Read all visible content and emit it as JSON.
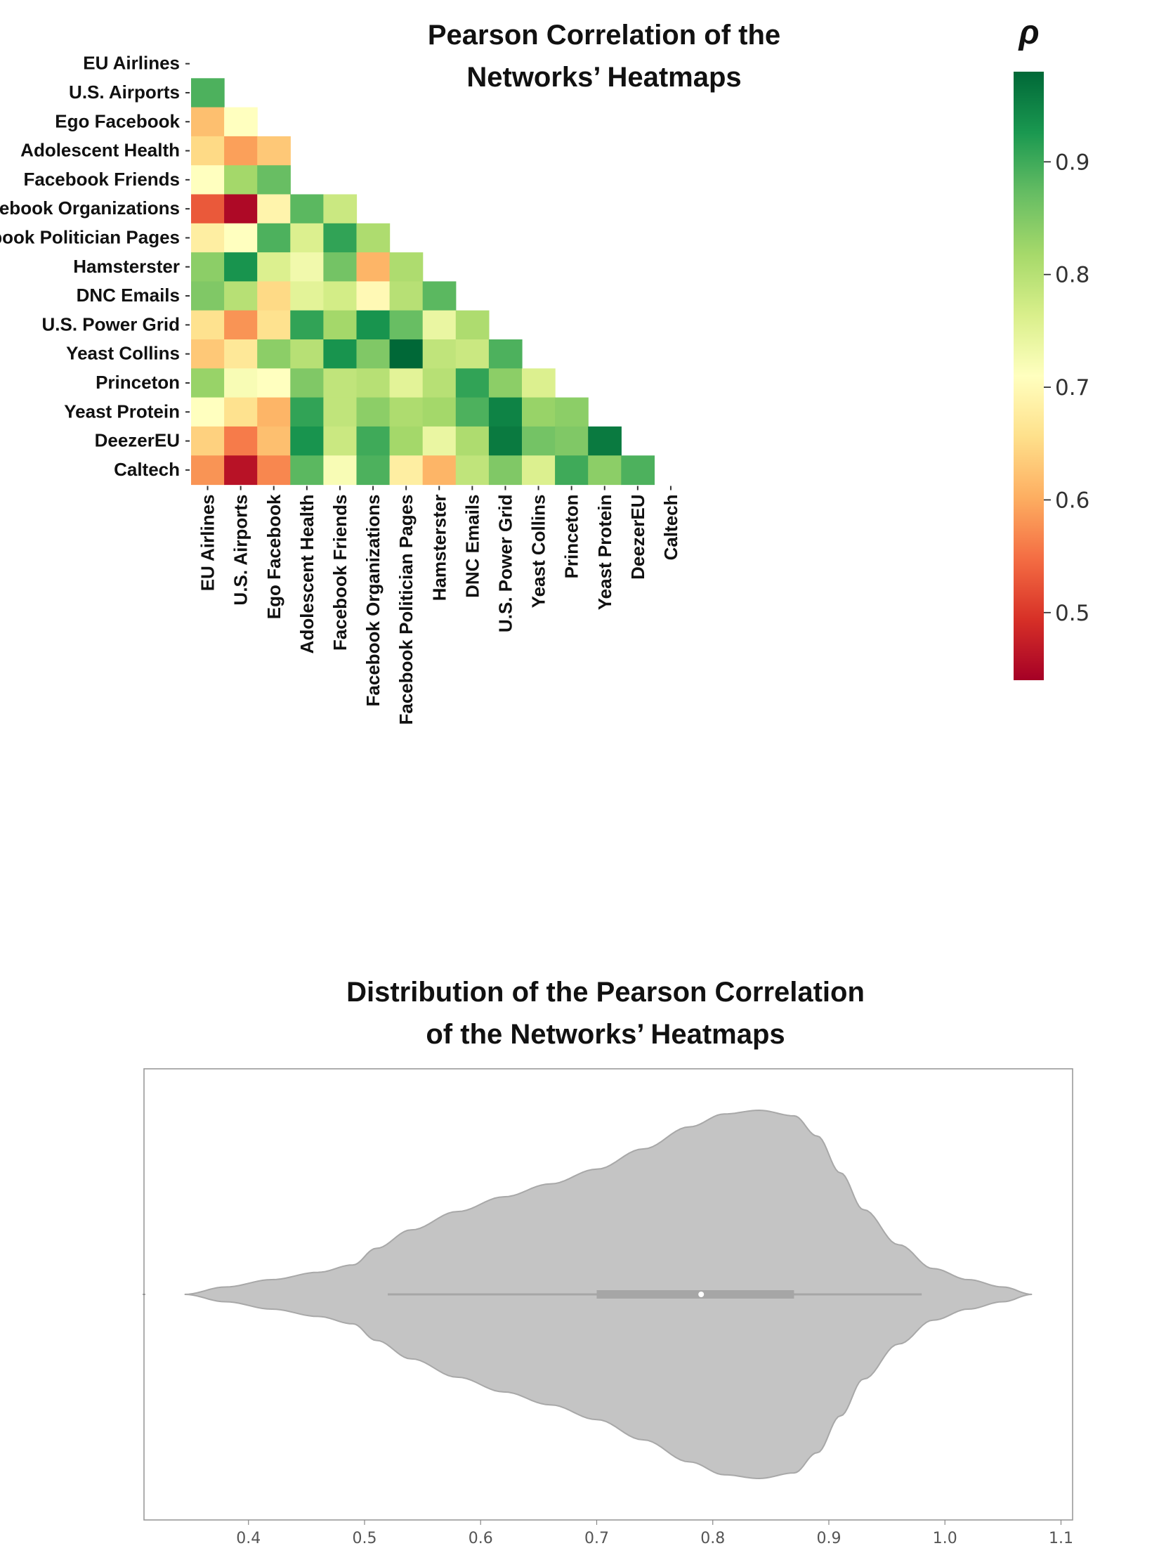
{
  "chart_data": [
    {
      "type": "heatmap",
      "title": [
        "Pearson Correlation of the",
        "Networks’ Heatmaps"
      ],
      "colorbar_label": "ρ",
      "colorbar_ticks": [
        0.5,
        0.6,
        0.7,
        0.8,
        0.9
      ],
      "colorbar_range": [
        0.44,
        0.98
      ],
      "colormap": "RdYlGn",
      "mask": "upper triangle including diagonal",
      "labels": [
        "EU Airlines",
        "U.S. Airports",
        "Ego Facebook",
        "Adolescent Health",
        "Facebook Friends",
        "Facebook Organizations",
        "Facebook Politician Pages",
        "Hamsterster",
        "DNC Emails",
        "U.S. Power Grid",
        "Yeast Collins",
        "Princeton",
        "Yeast Protein",
        "DeezerEU",
        "Caltech"
      ],
      "matrix": [
        [],
        [
          0.89
        ],
        [
          0.62,
          0.71
        ],
        [
          0.65,
          0.59,
          0.63
        ],
        [
          0.71,
          0.82,
          0.87
        ],
        [
          0.53,
          0.45,
          0.69,
          0.88,
          0.78
        ],
        [
          0.68,
          0.71,
          0.89,
          0.76,
          0.91,
          0.81
        ],
        [
          0.84,
          0.93,
          0.76,
          0.73,
          0.86,
          0.61,
          0.81
        ],
        [
          0.85,
          0.8,
          0.65,
          0.75,
          0.77,
          0.7,
          0.8,
          0.88
        ],
        [
          0.66,
          0.58,
          0.66,
          0.91,
          0.82,
          0.93,
          0.87,
          0.74,
          0.81
        ],
        [
          0.63,
          0.67,
          0.84,
          0.8,
          0.93,
          0.85,
          0.98,
          0.79,
          0.78,
          0.89
        ],
        [
          0.83,
          0.72,
          0.71,
          0.85,
          0.79,
          0.8,
          0.75,
          0.8,
          0.91,
          0.84,
          0.76
        ],
        [
          0.71,
          0.66,
          0.61,
          0.91,
          0.79,
          0.84,
          0.81,
          0.82,
          0.89,
          0.95,
          0.83,
          0.84
        ],
        [
          0.64,
          0.56,
          0.62,
          0.93,
          0.78,
          0.9,
          0.82,
          0.74,
          0.81,
          0.96,
          0.86,
          0.85,
          0.96
        ],
        [
          0.58,
          0.46,
          0.57,
          0.88,
          0.72,
          0.89,
          0.68,
          0.61,
          0.79,
          0.85,
          0.76,
          0.9,
          0.84,
          0.89
        ]
      ]
    },
    {
      "type": "violin",
      "title": [
        "Distribution of the Pearson Correlation",
        "of the Networks’ Heatmaps"
      ],
      "orientation": "horizontal",
      "xlim": [
        0.31,
        1.11
      ],
      "xticks": [
        0.4,
        0.5,
        0.6,
        0.7,
        0.8,
        0.9,
        1.0,
        1.1
      ],
      "xtick_labels": [
        "0.4",
        "0.5",
        "0.6",
        "0.7",
        "0.8",
        "0.9",
        "1.0",
        "1.1"
      ],
      "color": "#c4c4c4",
      "density_profile": [
        [
          0.345,
          0.0
        ],
        [
          0.38,
          0.04
        ],
        [
          0.42,
          0.08
        ],
        [
          0.46,
          0.12
        ],
        [
          0.49,
          0.16
        ],
        [
          0.51,
          0.25
        ],
        [
          0.54,
          0.35
        ],
        [
          0.58,
          0.45
        ],
        [
          0.62,
          0.53
        ],
        [
          0.66,
          0.6
        ],
        [
          0.7,
          0.68
        ],
        [
          0.74,
          0.79
        ],
        [
          0.78,
          0.91
        ],
        [
          0.81,
          0.98
        ],
        [
          0.84,
          1.0
        ],
        [
          0.87,
          0.97
        ],
        [
          0.89,
          0.86
        ],
        [
          0.91,
          0.66
        ],
        [
          0.93,
          0.46
        ],
        [
          0.96,
          0.27
        ],
        [
          0.99,
          0.14
        ],
        [
          1.02,
          0.08
        ],
        [
          1.05,
          0.04
        ],
        [
          1.075,
          0.0
        ]
      ],
      "box": {
        "whisker_low": 0.52,
        "q1": 0.7,
        "median": 0.79,
        "q3": 0.87,
        "whisker_high": 0.98
      }
    }
  ]
}
